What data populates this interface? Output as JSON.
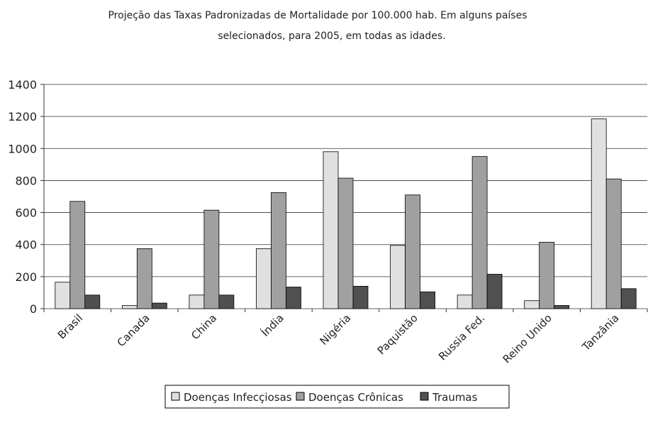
{
  "chart_data": {
    "type": "bar",
    "title": [
      "Projeção das Taxas Padronizadas de Mortalidade por 100.000 hab. Em alguns países",
      "selecionados, para 2005, em todas as idades."
    ],
    "categories": [
      "Brasil",
      "Canada",
      "China",
      "Índia",
      "Nigéria",
      "Paquistão",
      "Russia Fed.",
      "Reino Unido",
      "Tanzânia"
    ],
    "series": [
      {
        "name": "Doenças Infecçiosas",
        "color": "#e0e0e0",
        "values": [
          165,
          20,
          85,
          375,
          980,
          395,
          85,
          50,
          1185
        ]
      },
      {
        "name": "Doenças Crônicas",
        "color": "#a0a0a0",
        "values": [
          670,
          375,
          615,
          725,
          815,
          710,
          950,
          415,
          810
        ]
      },
      {
        "name": "Traumas",
        "color": "#505050",
        "values": [
          85,
          35,
          85,
          135,
          140,
          105,
          215,
          20,
          125
        ]
      }
    ],
    "ylim": [
      0,
      1400
    ],
    "yticks": [
      0,
      200,
      400,
      600,
      800,
      1000,
      1200,
      1400
    ],
    "grid": true,
    "legend": "bottom"
  }
}
